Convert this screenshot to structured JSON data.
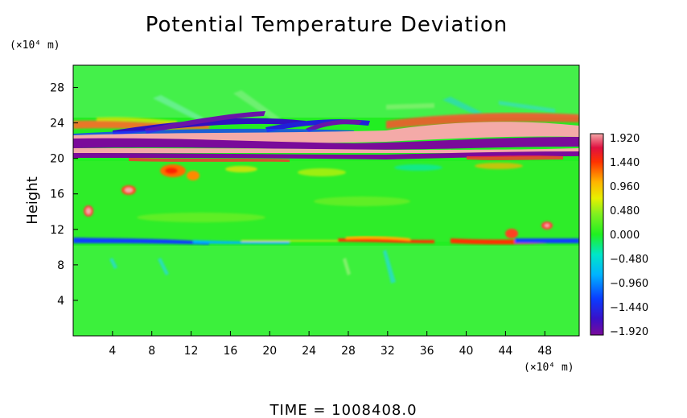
{
  "chart_data": {
    "type": "heatmap",
    "title": "Potential Temperature Deviation",
    "ylabel": "Height",
    "x_unit": "(×10⁴ m)",
    "y_unit": "(×10⁴ m)",
    "x_ticks": [
      "4",
      "8",
      "12",
      "16",
      "20",
      "24",
      "28",
      "32",
      "36",
      "40",
      "44",
      "48"
    ],
    "y_ticks": [
      "4",
      "8",
      "12",
      "16",
      "20",
      "24",
      "28"
    ],
    "xlim": [
      0,
      51.5
    ],
    "ylim": [
      0,
      30.5
    ],
    "colorbar": {
      "ticks": [
        "1.920",
        "1.440",
        "0.960",
        "0.480",
        "0.000",
        "−0.480",
        "−0.960",
        "−1.440",
        "−1.920"
      ],
      "range": [
        -1.92,
        1.92
      ]
    },
    "field_description_rows": [
      {
        "y": 22.5,
        "value": 1.9
      },
      {
        "y": 21.5,
        "value": -1.9
      },
      {
        "y": 20.8,
        "value": 1.9
      },
      {
        "y": 20.3,
        "value": -1.6
      },
      {
        "y": 10.5,
        "value": -1.2
      },
      {
        "y": 1.0,
        "value": 0.0
      }
    ],
    "background_value": 0.05,
    "grid": false
  },
  "footer": {
    "time_text": "TIME  =  1008408.0"
  }
}
